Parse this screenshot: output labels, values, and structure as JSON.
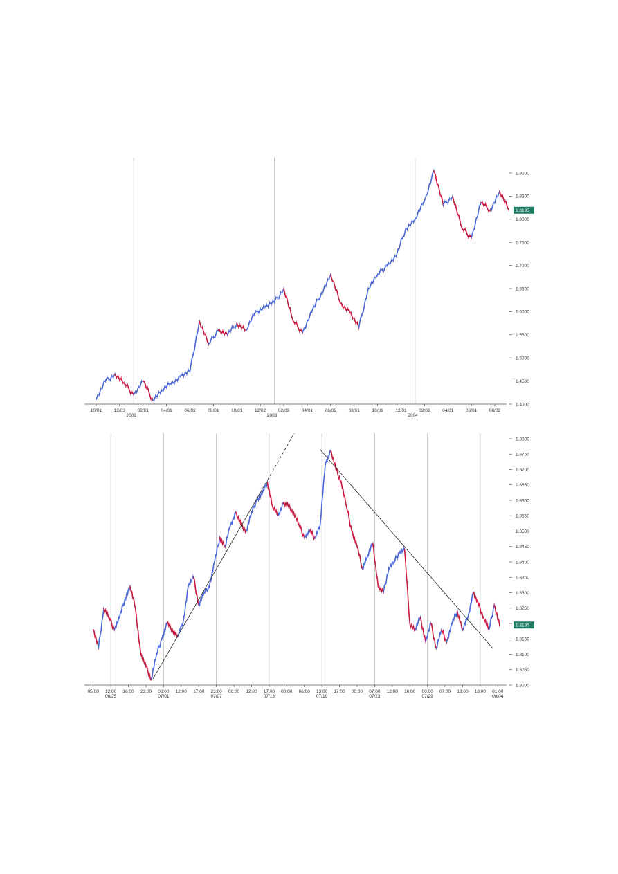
{
  "colors": {
    "up": "#4a67d6",
    "down": "#c8183f",
    "badge": "#1f7a63",
    "grid": "#bdbdbd",
    "axis": "#555555",
    "trendline": "#222222"
  },
  "chart_data": [
    {
      "type": "line",
      "name": "top-chart",
      "xlabel": "",
      "ylabel": "",
      "ylim": [
        1.4,
        1.9
      ],
      "y_ticks": [
        "1.4000",
        "1.4500",
        "1.5000",
        "1.5500",
        "1.6000",
        "1.6500",
        "1.7000",
        "1.7500",
        "1.8000",
        "1.8500",
        "1.9000"
      ],
      "x_ticks": [
        "10/01",
        "12/03",
        "02/01",
        "04/01",
        "06/03",
        "08/01",
        "10/01",
        "12/02",
        "02/03",
        "04/01",
        "06/02",
        "08/01",
        "10/01",
        "12/01",
        "02/02",
        "04/01",
        "06/01",
        "08/02"
      ],
      "x_sublabels": [
        {
          "label": "2002",
          "at_tick": 1.5
        },
        {
          "label": "2003",
          "at_tick": 7.5
        },
        {
          "label": "2004",
          "at_tick": 13.5
        }
      ],
      "year_separators_at_tick": [
        1.6,
        7.6,
        13.6
      ],
      "last_price": "1.8195",
      "last_value": 1.8195,
      "series": [
        {
          "x": [
            0,
            0.4,
            0.8,
            1.2,
            1.6,
            2.0,
            2.4,
            2.8,
            3.2,
            3.6,
            4.0,
            4.4,
            4.8,
            5.2,
            5.6,
            6.0,
            6.4,
            6.8,
            7.2,
            7.6,
            8.0,
            8.4,
            8.8,
            9.2,
            9.6,
            10.0,
            10.4,
            10.8,
            11.2,
            11.6,
            12.0,
            12.4,
            12.8,
            13.2,
            13.6,
            14.0,
            14.4,
            14.8,
            15.2,
            15.6,
            16.0,
            16.4,
            16.8,
            17.2,
            17.6
          ],
          "values": [
            1.41,
            1.45,
            1.465,
            1.445,
            1.42,
            1.45,
            1.41,
            1.43,
            1.445,
            1.46,
            1.47,
            1.58,
            1.53,
            1.56,
            1.55,
            1.575,
            1.56,
            1.6,
            1.61,
            1.62,
            1.65,
            1.58,
            1.555,
            1.6,
            1.64,
            1.68,
            1.62,
            1.6,
            1.565,
            1.65,
            1.68,
            1.7,
            1.72,
            1.78,
            1.8,
            1.84,
            1.905,
            1.83,
            1.85,
            1.78,
            1.76,
            1.835,
            1.82,
            1.86,
            1.8195
          ]
        }
      ]
    },
    {
      "type": "line",
      "name": "bottom-chart",
      "xlabel": "",
      "ylabel": "",
      "ylim": [
        1.8,
        1.88
      ],
      "y_ticks": [
        "1.8000",
        "1.8050",
        "1.8100",
        "1.8150",
        "1.8200",
        "1.8250",
        "1.8300",
        "1.8350",
        "1.8400",
        "1.8450",
        "1.8500",
        "1.8550",
        "1.8600",
        "1.8650",
        "1.8700",
        "1.8750",
        "1.8800"
      ],
      "x_ticks": [
        "05:00",
        "12:00",
        "16:00",
        "23:00",
        "06:00",
        "12:00",
        "17:00",
        "23:00",
        "06:00",
        "12:00",
        "17:00",
        "00:00",
        "06:00",
        "13:00",
        "17:00",
        "00:00",
        "07:00",
        "12:00",
        "16:00",
        "00:00",
        "07:00",
        "13:00",
        "18:00",
        "01:00"
      ],
      "x_sublabels": [
        {
          "label": "06/25",
          "at_tick": 1
        },
        {
          "label": "07/01",
          "at_tick": 4
        },
        {
          "label": "07/07",
          "at_tick": 7
        },
        {
          "label": "07/13",
          "at_tick": 10
        },
        {
          "label": "07/19",
          "at_tick": 13
        },
        {
          "label": "07/23",
          "at_tick": 16
        },
        {
          "label": "07/29",
          "at_tick": 19
        },
        {
          "label": "08/04",
          "at_tick": 23
        }
      ],
      "separators_at_tick": [
        1.0,
        4.0,
        7.0,
        10.0,
        13.0,
        16.0,
        19.0,
        22.0
      ],
      "last_price": "1.8195",
      "last_value": 1.8195,
      "series": [
        {
          "x": [
            0,
            0.3,
            0.6,
            0.9,
            1.2,
            1.5,
            1.8,
            2.1,
            2.4,
            2.7,
            3.0,
            3.3,
            3.6,
            3.9,
            4.2,
            4.5,
            4.8,
            5.1,
            5.4,
            5.7,
            6.0,
            6.3,
            6.6,
            6.9,
            7.2,
            7.5,
            7.8,
            8.1,
            8.4,
            8.7,
            9.0,
            9.3,
            9.6,
            9.9,
            10.2,
            10.5,
            10.8,
            11.1,
            11.4,
            11.7,
            12.0,
            12.3,
            12.6,
            12.9,
            13.2,
            13.5,
            13.8,
            14.1,
            14.4,
            14.7,
            15.0,
            15.3,
            15.6,
            15.9,
            16.2,
            16.5,
            16.8,
            17.1,
            17.4,
            17.7,
            18.0,
            18.3,
            18.6,
            18.9,
            19.2,
            19.5,
            19.8,
            20.1,
            20.4,
            20.7,
            21.0,
            21.3,
            21.6,
            21.9,
            22.2,
            22.5,
            22.8,
            23.1
          ],
          "values": [
            1.818,
            1.812,
            1.825,
            1.822,
            1.818,
            1.822,
            1.828,
            1.832,
            1.825,
            1.81,
            1.806,
            1.802,
            1.81,
            1.815,
            1.82,
            1.818,
            1.816,
            1.82,
            1.832,
            1.835,
            1.826,
            1.83,
            1.832,
            1.84,
            1.848,
            1.845,
            1.852,
            1.856,
            1.852,
            1.85,
            1.856,
            1.86,
            1.862,
            1.866,
            1.858,
            1.855,
            1.859,
            1.858,
            1.856,
            1.852,
            1.848,
            1.85,
            1.848,
            1.852,
            1.872,
            1.876,
            1.87,
            1.866,
            1.858,
            1.85,
            1.845,
            1.838,
            1.842,
            1.846,
            1.832,
            1.83,
            1.838,
            1.84,
            1.843,
            1.844,
            1.82,
            1.818,
            1.822,
            1.814,
            1.82,
            1.812,
            1.818,
            1.814,
            1.82,
            1.824,
            1.818,
            1.822,
            1.83,
            1.826,
            1.822,
            1.818,
            1.826,
            1.8195
          ]
        }
      ],
      "trendlines": [
        {
          "style": "solid",
          "from": [
            3.4,
            1.802
          ],
          "to": [
            9.5,
            1.8625
          ]
        },
        {
          "style": "dashed",
          "from": [
            9.5,
            1.8625
          ],
          "to": [
            11.6,
            1.8835
          ]
        },
        {
          "style": "solid",
          "from": [
            12.9,
            1.8765
          ],
          "to": [
            22.7,
            1.812
          ]
        }
      ]
    }
  ]
}
